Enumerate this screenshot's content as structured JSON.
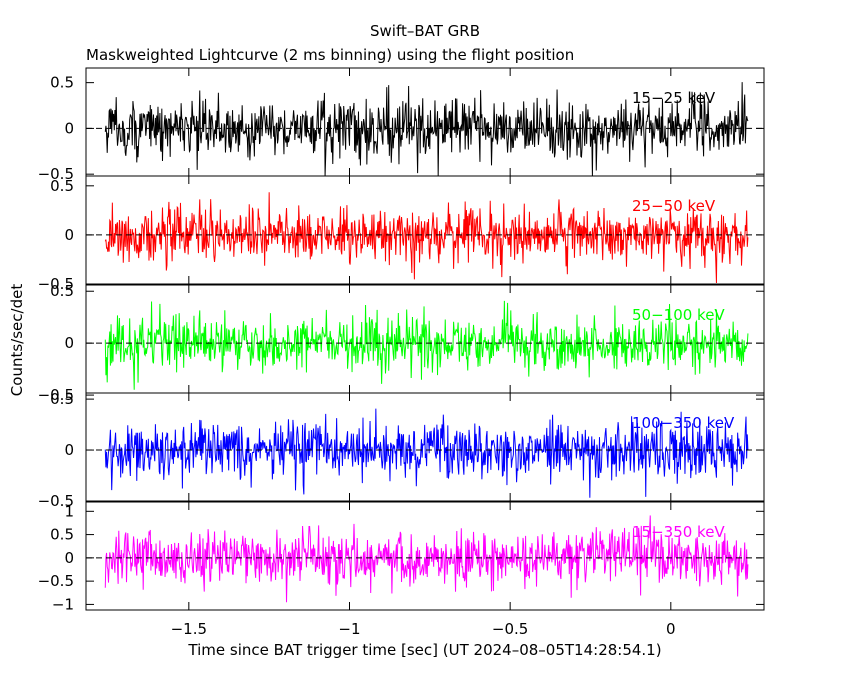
{
  "title": "Swift–BAT GRB",
  "subtitle": "Maskweighted Lightcurve (2 ms binning) using the flight position",
  "xlabel": "Time since BAT trigger time [sec] (UT 2024–08–05T14:28:54.1)",
  "ylabel": "Counts/sec/det",
  "colors": {
    "axes": "#000000",
    "background": "#ffffff"
  },
  "chart_data": {
    "type": "line",
    "bin_seconds": 0.002,
    "xlim": [
      -1.82,
      0.29
    ],
    "x_ticks": [
      -1.5,
      -1,
      -0.5,
      0
    ],
    "x_tick_labels": [
      "−1.5",
      "−1",
      "−0.5",
      "0"
    ],
    "x_data_range": [
      -1.76,
      0.24
    ],
    "grid": false,
    "panels": [
      {
        "name": "15−25 keV",
        "color": "#000000",
        "ylim": [
          -0.52,
          0.66
        ],
        "y_ticks": [
          -0.5,
          0,
          0.5
        ],
        "y_tick_labels": [
          "−0.5",
          "0",
          "0.5"
        ],
        "noise_amplitude": 0.16,
        "mean": 0
      },
      {
        "name": "25−50 keV",
        "color": "#ff0000",
        "ylim": [
          -0.5,
          0.6
        ],
        "y_ticks": [
          -0.5,
          0,
          0.5
        ],
        "y_tick_labels": [
          "−0.5",
          "0",
          "0.5"
        ],
        "noise_amplitude": 0.14,
        "mean": 0
      },
      {
        "name": "50−100 keV",
        "color": "#00ff00",
        "ylim": [
          -0.48,
          0.56
        ],
        "y_ticks": [
          -0.5,
          0,
          0.5
        ],
        "y_tick_labels": [
          "−0.5",
          "0",
          "0.5"
        ],
        "noise_amplitude": 0.13,
        "mean": 0
      },
      {
        "name": "100−350 keV",
        "color": "#0000ff",
        "ylim": [
          -0.5,
          0.56
        ],
        "y_ticks": [
          -0.5,
          0,
          0.5
        ],
        "y_tick_labels": [
          "−0.5",
          "0",
          "0.5"
        ],
        "noise_amplitude": 0.14,
        "mean": 0
      },
      {
        "name": "15−350 keV",
        "color": "#ff00ff",
        "ylim": [
          -1.12,
          1.2
        ],
        "y_ticks": [
          -1,
          -0.5,
          0,
          0.5,
          1
        ],
        "y_tick_labels": [
          "−1",
          "−0.5",
          "0",
          "0.5",
          "1"
        ],
        "noise_amplitude": 0.3,
        "mean": 0
      }
    ]
  }
}
